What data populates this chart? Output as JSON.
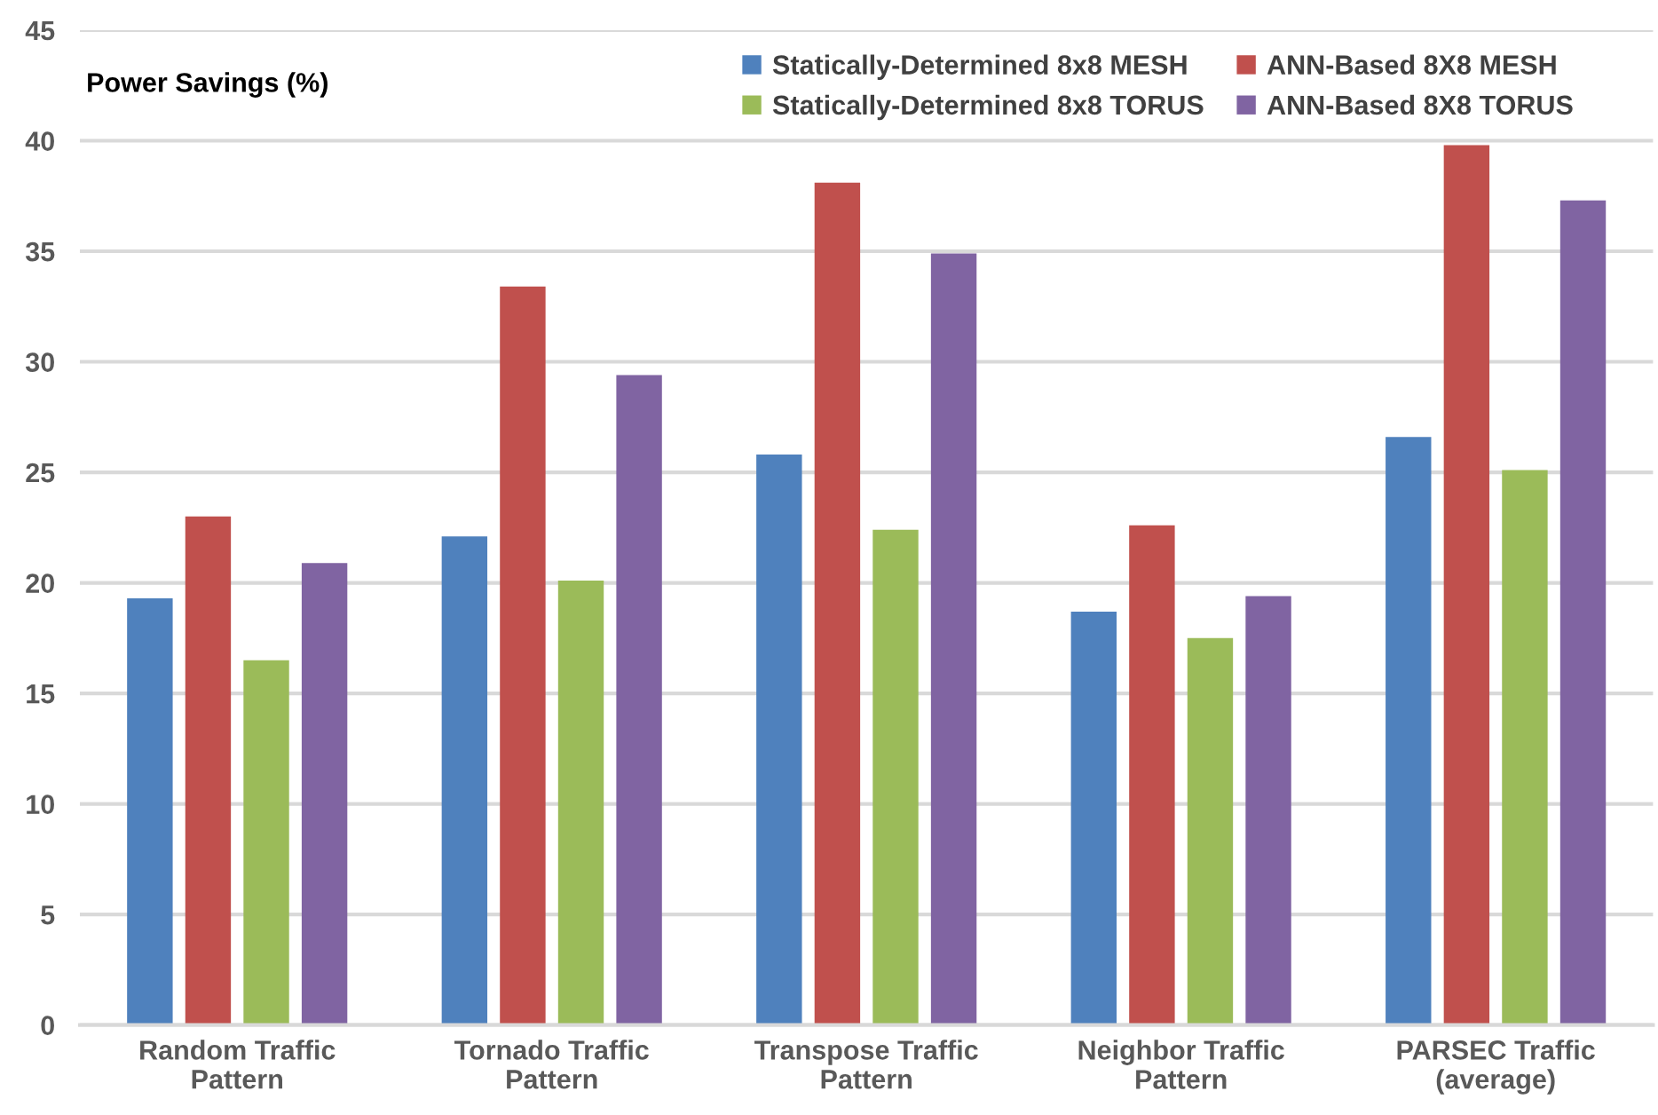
{
  "chart_data": {
    "type": "bar",
    "ylabel": "Power Savings (%)",
    "categories": [
      "Random Traffic\nPattern",
      "Tornado Traffic\nPattern",
      "Transpose Traffic\nPattern",
      "Neighbor Traffic\nPattern",
      "PARSEC Traffic\n(average)"
    ],
    "series": [
      {
        "name": "Statically-Determined 8x8 MESH",
        "color": "#4f81bd",
        "values": [
          19.3,
          22.1,
          25.8,
          18.7,
          26.6
        ]
      },
      {
        "name": "ANN-Based 8X8 MESH",
        "color": "#c0504d",
        "values": [
          23.0,
          33.4,
          38.1,
          22.6,
          39.8
        ]
      },
      {
        "name": "Statically-Determined 8x8 TORUS",
        "color": "#9bbb59",
        "values": [
          16.5,
          20.1,
          22.4,
          17.5,
          25.1
        ]
      },
      {
        "name": "ANN-Based 8X8 TORUS",
        "color": "#8064a2",
        "values": [
          20.9,
          29.4,
          34.9,
          19.4,
          37.3
        ]
      }
    ],
    "ylim": [
      0,
      45
    ],
    "yticks": [
      0,
      5,
      10,
      15,
      20,
      25,
      30,
      35,
      40,
      45
    ],
    "grid": "y",
    "legend": "top right"
  }
}
